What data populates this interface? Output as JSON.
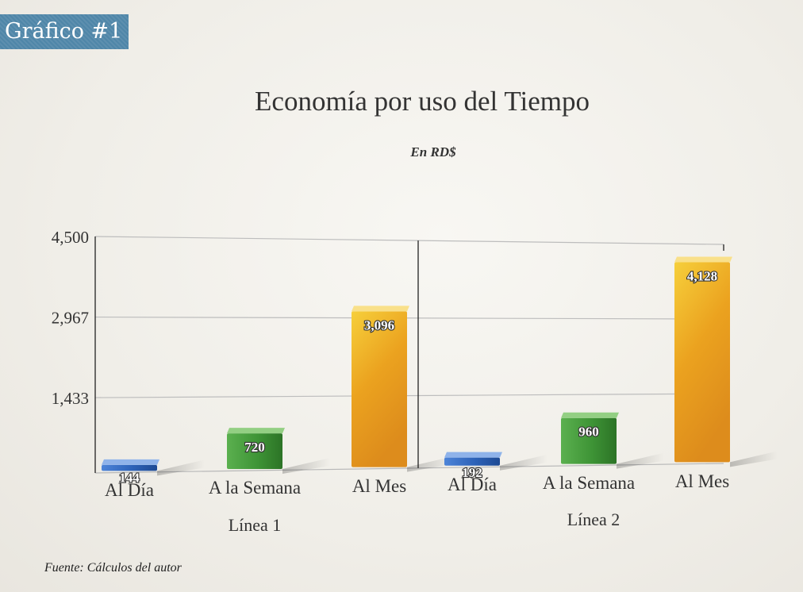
{
  "badge": "Gráfico #1",
  "chart_data": {
    "type": "bar",
    "title": "Economía por uso del Tiempo",
    "subtitle": "En RD$",
    "source": "Fuente: Cálculos del autor",
    "ylim": [
      0,
      4500
    ],
    "yticks": [
      "4,500",
      "2,967",
      "1,433"
    ],
    "ytick_values": [
      4500,
      2966.67,
      1433.33
    ],
    "grid": true,
    "groups": [
      {
        "name": "Línea 1",
        "categories": [
          "Al Día",
          "A la Semana",
          "Al Mes"
        ],
        "values": [
          144,
          720,
          3096
        ],
        "labels": [
          "144",
          "720",
          "3,096"
        ]
      },
      {
        "name": "Línea 2",
        "categories": [
          "Al Día",
          "A la Semana",
          "Al Mes"
        ],
        "values": [
          192,
          960,
          4128
        ],
        "labels": [
          "192",
          "960",
          "4,128"
        ]
      }
    ],
    "colors": [
      "#2d62b8",
      "#3e9436",
      "#eba21f"
    ]
  }
}
